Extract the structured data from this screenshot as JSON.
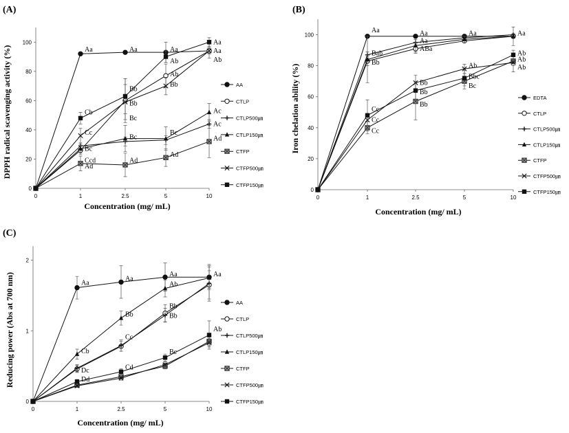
{
  "chart_data": [
    {
      "panel": "(A)",
      "type": "line",
      "ylabel": "DPPH radical scavenging activity (%)",
      "xlabel": "Concentration (mg/ mL)",
      "categories": [
        "0",
        "1",
        "2.5",
        "5",
        "10"
      ],
      "ylim": [
        0,
        110
      ],
      "yticks": [
        0,
        20,
        40,
        60,
        80,
        100
      ],
      "grid": false,
      "legend_position": "right",
      "series": [
        {
          "name": "AA",
          "marker": "circle",
          "values": [
            0,
            92,
            93,
            93,
            94
          ],
          "err": [
            0,
            0,
            1,
            7,
            2
          ]
        },
        {
          "name": "CTLP",
          "marker": "open-circle",
          "values": [
            0,
            26,
            60,
            77,
            94
          ],
          "err": [
            0,
            3,
            15,
            8,
            2
          ]
        },
        {
          "name": "CTLP500㎛",
          "marker": "plus",
          "values": [
            0,
            29,
            32,
            33,
            44
          ],
          "err": [
            0,
            2,
            3,
            3,
            3
          ]
        },
        {
          "name": "CTLP150㎛",
          "marker": "triangle",
          "values": [
            0,
            27,
            34,
            34,
            52
          ],
          "err": [
            0,
            3,
            9,
            8,
            6
          ]
        },
        {
          "name": "CTFP",
          "marker": "x-box",
          "values": [
            0,
            17,
            16,
            21,
            32
          ],
          "err": [
            0,
            5,
            8,
            6,
            11
          ]
        },
        {
          "name": "CTFP500㎛",
          "marker": "x",
          "values": [
            0,
            36,
            59,
            70,
            94
          ],
          "err": [
            0,
            5,
            12,
            6,
            5
          ]
        },
        {
          "name": "CTFP150㎛",
          "marker": "square",
          "values": [
            0,
            48,
            63,
            90,
            100
          ],
          "err": [
            0,
            4,
            12,
            4,
            3
          ]
        }
      ],
      "annotations": [
        {
          "x": "1",
          "y": 95,
          "text": "Aa"
        },
        {
          "x": "2.5",
          "y": 95,
          "text": "Aa"
        },
        {
          "x": "5",
          "y": 95,
          "text": "Aa"
        },
        {
          "x": "10",
          "y": 100,
          "text": "Aa"
        },
        {
          "x": "10",
          "y": 94,
          "text": "Aa"
        },
        {
          "x": "10",
          "y": 88,
          "text": "Ab"
        },
        {
          "x": "5",
          "y": 87,
          "text": "Ab"
        },
        {
          "x": "5",
          "y": 78,
          "text": "Ab"
        },
        {
          "x": "5",
          "y": 71,
          "text": "Bb"
        },
        {
          "x": "2.5",
          "y": 68,
          "text": "Bb"
        },
        {
          "x": "2.5",
          "y": 58,
          "text": "Bb"
        },
        {
          "x": "1",
          "y": 52,
          "text": "Cb"
        },
        {
          "x": "1",
          "y": 38,
          "text": "Cc"
        },
        {
          "x": "1",
          "y": 27,
          "text": "Bc"
        },
        {
          "x": "1",
          "y": 19,
          "text": "Ccd"
        },
        {
          "x": "1",
          "y": 15,
          "text": "Ad"
        },
        {
          "x": "2.5",
          "y": 48,
          "text": "Bc"
        },
        {
          "x": "2.5",
          "y": 35,
          "text": "Bc"
        },
        {
          "x": "2.5",
          "y": 19,
          "text": "Ad"
        },
        {
          "x": "5",
          "y": 38,
          "text": "Bc"
        },
        {
          "x": "5",
          "y": 23,
          "text": "Ad"
        },
        {
          "x": "10",
          "y": 53,
          "text": "Ac"
        },
        {
          "x": "10",
          "y": 44,
          "text": "Ac"
        },
        {
          "x": "10",
          "y": 34,
          "text": "Ad"
        }
      ]
    },
    {
      "panel": "(B)",
      "type": "line",
      "ylabel": "Iron chelation ability (%)",
      "xlabel": "Concentration (mg/ mL)",
      "categories": [
        "0",
        "1",
        "2.5",
        "5",
        "10"
      ],
      "ylim": [
        0,
        110
      ],
      "yticks": [
        0,
        20,
        40,
        60,
        80,
        100
      ],
      "grid": false,
      "legend_position": "right",
      "series": [
        {
          "name": "EDTA",
          "marker": "circle",
          "values": [
            0,
            99,
            99,
            99,
            99
          ],
          "err": [
            0,
            0,
            0,
            0,
            0
          ]
        },
        {
          "name": "CTLP",
          "marker": "open-circle",
          "values": [
            0,
            83,
            91,
            96,
            99
          ],
          "err": [
            0,
            3,
            3,
            1,
            1
          ]
        },
        {
          "name": "CTLP500㎛",
          "marker": "plus",
          "values": [
            0,
            87,
            95,
            98,
            100
          ],
          "err": [
            0,
            2,
            2,
            1,
            1
          ]
        },
        {
          "name": "CTLP150㎛",
          "marker": "triangle",
          "values": [
            0,
            84,
            93,
            97,
            99
          ],
          "err": [
            0,
            15,
            4,
            2,
            6
          ]
        },
        {
          "name": "CTFP",
          "marker": "x-box",
          "values": [
            0,
            40,
            57,
            70,
            83
          ],
          "err": [
            0,
            4,
            12,
            5,
            3
          ]
        },
        {
          "name": "CTFP500㎛",
          "marker": "x",
          "values": [
            0,
            45,
            69,
            78,
            82
          ],
          "err": [
            0,
            4,
            5,
            3,
            6
          ]
        },
        {
          "name": "CTFP150㎛",
          "marker": "square",
          "values": [
            0,
            48,
            64,
            72,
            87
          ],
          "err": [
            0,
            10,
            6,
            5,
            3
          ]
        }
      ],
      "annotations": [
        {
          "x": "1",
          "y": 103,
          "text": "Aa"
        },
        {
          "x": "2.5",
          "y": 101,
          "text": "Aa"
        },
        {
          "x": "5",
          "y": 101,
          "text": "Aa"
        },
        {
          "x": "10",
          "y": 101,
          "text": "Aa"
        },
        {
          "x": "2.5",
          "y": 96,
          "text": "Aa"
        },
        {
          "x": "2.5",
          "y": 91,
          "text": "ABa"
        },
        {
          "x": "1",
          "y": 88,
          "text": "Bab"
        },
        {
          "x": "1",
          "y": 82,
          "text": "Bb"
        },
        {
          "x": "10",
          "y": 88,
          "text": "Ab"
        },
        {
          "x": "10",
          "y": 84,
          "text": "Ab"
        },
        {
          "x": "10",
          "y": 79,
          "text": "Ab"
        },
        {
          "x": "5",
          "y": 80,
          "text": "Ab"
        },
        {
          "x": "5",
          "y": 73,
          "text": "Bbc"
        },
        {
          "x": "5",
          "y": 67,
          "text": "Bc"
        },
        {
          "x": "2.5",
          "y": 69,
          "text": "Bb"
        },
        {
          "x": "2.5",
          "y": 63,
          "text": "Bb"
        },
        {
          "x": "2.5",
          "y": 55,
          "text": "Bb"
        },
        {
          "x": "1",
          "y": 52,
          "text": "Cc"
        },
        {
          "x": "1",
          "y": 45,
          "text": "Cc"
        },
        {
          "x": "1",
          "y": 38,
          "text": "Cc"
        }
      ]
    },
    {
      "panel": "(C)",
      "type": "line",
      "ylabel": "Reducing power (Abs at 700 nm)",
      "xlabel": "Concentration (mg/ mL)",
      "categories": [
        "0",
        "1",
        "2.5",
        "5",
        "10"
      ],
      "ylim": [
        0,
        2.2
      ],
      "yticks": [
        0,
        1,
        2
      ],
      "grid": false,
      "legend_position": "right",
      "series": [
        {
          "name": "AA",
          "marker": "circle",
          "values": [
            0,
            1.61,
            1.69,
            1.76,
            1.76
          ],
          "err": [
            0,
            0.16,
            0.23,
            0.2,
            0.18
          ]
        },
        {
          "name": "CTLP",
          "marker": "open-circle",
          "values": [
            0,
            0.46,
            0.78,
            1.25,
            1.65
          ],
          "err": [
            0,
            0.05,
            0.07,
            0.12,
            0.2
          ]
        },
        {
          "name": "CTLP500㎛",
          "marker": "plus",
          "values": [
            0,
            0.47,
            0.79,
            1.22,
            1.67
          ],
          "err": [
            0,
            0.05,
            0.08,
            0.1,
            0.25
          ]
        },
        {
          "name": "CTLP150㎛",
          "marker": "triangle",
          "values": [
            0,
            0.67,
            1.18,
            1.6,
            1.75
          ],
          "err": [
            0,
            0.07,
            0.1,
            0.12,
            0.15
          ]
        },
        {
          "name": "CTFP",
          "marker": "x-box",
          "values": [
            0,
            0.23,
            0.35,
            0.5,
            0.85
          ],
          "err": [
            0,
            0.02,
            0.03,
            0.04,
            0.06
          ]
        },
        {
          "name": "CTFP500㎛",
          "marker": "x",
          "values": [
            0,
            0.22,
            0.33,
            0.52,
            0.83
          ],
          "err": [
            0,
            0.02,
            0.03,
            0.04,
            0.06
          ]
        },
        {
          "name": "CTFP150㎛",
          "marker": "square",
          "values": [
            0,
            0.28,
            0.42,
            0.62,
            0.94
          ],
          "err": [
            0,
            0.03,
            0.04,
            0.05,
            0.2
          ]
        }
      ],
      "annotations": [
        {
          "x": "1",
          "y": 1.68,
          "text": "Aa"
        },
        {
          "x": "2.5",
          "y": 1.74,
          "text": "Aa"
        },
        {
          "x": "5",
          "y": 1.8,
          "text": "Aa"
        },
        {
          "x": "10",
          "y": 1.8,
          "text": "Aa"
        },
        {
          "x": "5",
          "y": 1.66,
          "text": "Ab"
        },
        {
          "x": "5",
          "y": 1.35,
          "text": "Bb"
        },
        {
          "x": "5",
          "y": 1.21,
          "text": "Bb"
        },
        {
          "x": "2.5",
          "y": 1.23,
          "text": "Bb"
        },
        {
          "x": "2.5",
          "y": 0.91,
          "text": "Cc"
        },
        {
          "x": "2.5",
          "y": 0.48,
          "text": "Cd"
        },
        {
          "x": "1",
          "y": 0.71,
          "text": "Cb"
        },
        {
          "x": "1",
          "y": 0.44,
          "text": "Dc"
        },
        {
          "x": "1",
          "y": 0.31,
          "text": "Dd"
        },
        {
          "x": "5",
          "y": 0.7,
          "text": "Bc"
        },
        {
          "x": "10",
          "y": 1.02,
          "text": "Ab"
        }
      ]
    }
  ]
}
